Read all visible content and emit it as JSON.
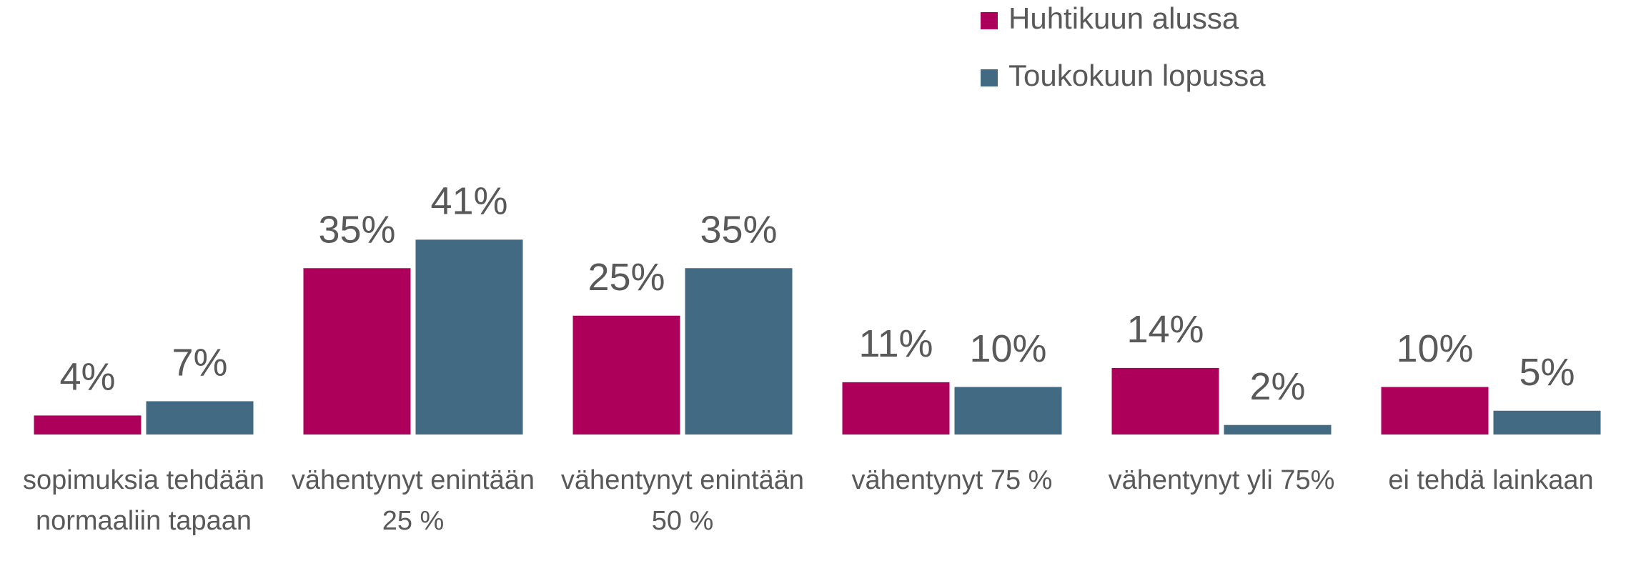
{
  "chart_data": {
    "type": "bar",
    "categories": [
      "sopimuksia tehdään normaaliin tapaan",
      "vähentynyt enintään 25 %",
      "vähentynyt enintään 50 %",
      "vähentynyt 75 %",
      "vähentynyt yli 75%",
      "ei tehdä lainkaan"
    ],
    "series": [
      {
        "name": "Huhtikuun alussa",
        "color": "#ad005b",
        "values": [
          4,
          35,
          25,
          11,
          14,
          10
        ],
        "value_labels": [
          "4%",
          "35%",
          "25%",
          "11%",
          "14%",
          "10%"
        ]
      },
      {
        "name": "Toukokuun lopussa",
        "color": "#426a82",
        "values": [
          7,
          41,
          35,
          10,
          2,
          5
        ],
        "value_labels": [
          "7%",
          "41%",
          "35%",
          "10%",
          "2%",
          "5%"
        ]
      }
    ],
    "legend": "top-right"
  }
}
